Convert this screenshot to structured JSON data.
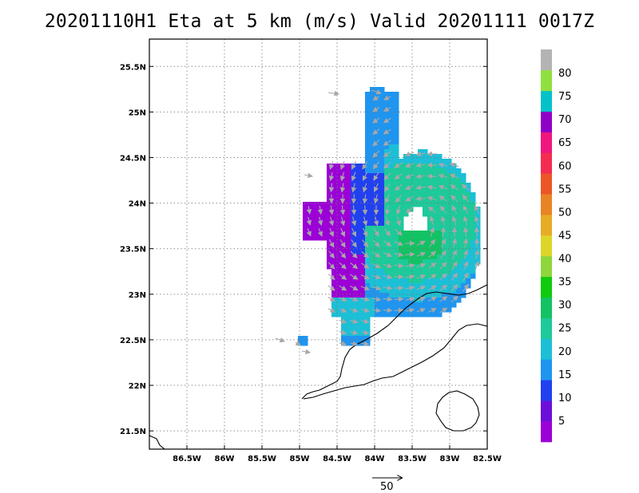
{
  "title": "20201110H1 Eta at 5 km (m/s) Valid 20201111 0017Z",
  "map": {
    "lon_range": [
      -87.0,
      -82.5
    ],
    "lat_range": [
      21.3,
      25.8
    ],
    "x_ticks": [
      {
        "value": -86.5,
        "label": "86.5W"
      },
      {
        "value": -86.0,
        "label": "86W"
      },
      {
        "value": -85.5,
        "label": "85.5W"
      },
      {
        "value": -85.0,
        "label": "85W"
      },
      {
        "value": -84.5,
        "label": "84.5W"
      },
      {
        "value": -84.0,
        "label": "84W"
      },
      {
        "value": -83.5,
        "label": "83.5W"
      },
      {
        "value": -83.0,
        "label": "83W"
      },
      {
        "value": -82.5,
        "label": "82.5W"
      }
    ],
    "y_ticks": [
      {
        "value": 21.5,
        "label": "21.5N"
      },
      {
        "value": 22.0,
        "label": "22N"
      },
      {
        "value": 22.5,
        "label": "22.5N"
      },
      {
        "value": 23.0,
        "label": "23N"
      },
      {
        "value": 23.5,
        "label": "23.5N"
      },
      {
        "value": 24.0,
        "label": "24N"
      },
      {
        "value": 24.5,
        "label": "24.5N"
      },
      {
        "value": 25.0,
        "label": "25N"
      },
      {
        "value": 25.5,
        "label": "25.5N"
      }
    ],
    "grid": "dotted",
    "center": {
      "lon": -83.45,
      "lat": 23.8
    },
    "eye_radius_deg": 0.17,
    "coastline_color": "#000000",
    "vector_color": "#a8a8a8"
  },
  "colorbar": {
    "colors": [
      "#9b00d6",
      "#6c0fd8",
      "#2140f0",
      "#1f95ef",
      "#1cbfd6",
      "#1ec99a",
      "#13c264",
      "#0fca0f",
      "#8fd63c",
      "#dcd628",
      "#e6ac25",
      "#e88424",
      "#ec5626",
      "#f32d52",
      "#f0167e",
      "#8f00c6",
      "#05c2c8",
      "#90e040",
      "#b4b4b4"
    ],
    "labels": [
      "5",
      "10",
      "15",
      "20",
      "25",
      "30",
      "35",
      "40",
      "45",
      "50",
      "55",
      "60",
      "65",
      "70",
      "75",
      "80"
    ]
  },
  "vector_scale": {
    "label": "50"
  }
}
